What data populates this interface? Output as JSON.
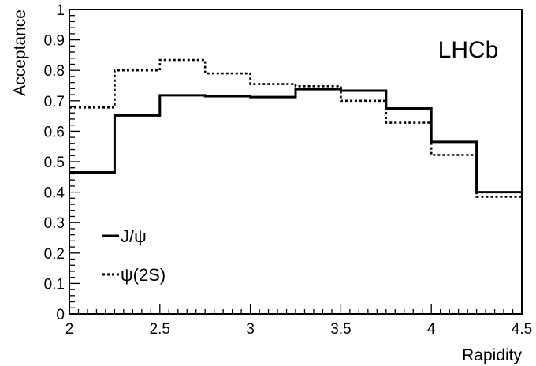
{
  "chart_data": {
    "type": "line",
    "step": true,
    "x_edges": [
      2.0,
      2.25,
      2.5,
      2.75,
      3.0,
      3.25,
      3.5,
      3.75,
      4.0,
      4.25,
      4.5
    ],
    "series": [
      {
        "name": "J/ψ",
        "style": "solid",
        "values": [
          0.465,
          0.652,
          0.718,
          0.715,
          0.712,
          0.738,
          0.733,
          0.675,
          0.565,
          0.4
        ]
      },
      {
        "name": "ψ(2S)",
        "style": "dotted",
        "values": [
          0.678,
          0.8,
          0.834,
          0.79,
          0.755,
          0.748,
          0.7,
          0.628,
          0.522,
          0.385
        ]
      }
    ],
    "title": "",
    "xlabel": "Rapidity",
    "ylabel": "Acceptance",
    "xlim": [
      2,
      4.5
    ],
    "ylim": [
      0,
      1
    ],
    "x_ticks": [
      "2",
      "2.5",
      "3",
      "3.5",
      "4",
      "4.5"
    ],
    "y_ticks": [
      "0",
      "0.1",
      "0.2",
      "0.3",
      "0.4",
      "0.5",
      "0.6",
      "0.7",
      "0.8",
      "0.9",
      "1"
    ],
    "annotation": "LHCb",
    "legend_position": "bottom-left",
    "grid": false
  }
}
